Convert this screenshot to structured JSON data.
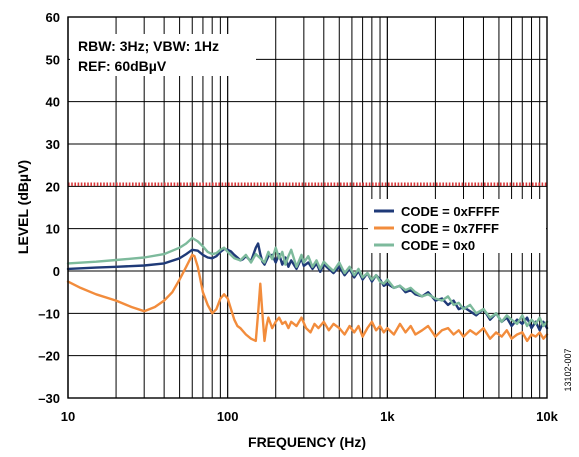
{
  "chart_data": {
    "type": "line",
    "xlabel": "FREQUENCY (Hz)",
    "ylabel": "LEVEL (dBµV)",
    "x_scale": "log",
    "xlim": [
      10,
      10000
    ],
    "ylim": [
      -30,
      60
    ],
    "x_ticks": [
      {
        "value": 10,
        "label": "10"
      },
      {
        "value": 100,
        "label": "100"
      },
      {
        "value": 1000,
        "label": "1k"
      },
      {
        "value": 10000,
        "label": "10k"
      }
    ],
    "y_ticks": [
      {
        "value": 60,
        "label": "60"
      },
      {
        "value": 50,
        "label": "50"
      },
      {
        "value": 40,
        "label": "40"
      },
      {
        "value": 30,
        "label": "30"
      },
      {
        "value": 20,
        "label": "20"
      },
      {
        "value": 10,
        "label": "10"
      },
      {
        "value": 0,
        "label": "0"
      },
      {
        "value": -10,
        "label": "–10"
      },
      {
        "value": -20,
        "label": "–20"
      },
      {
        "value": -30,
        "label": "–30"
      }
    ],
    "grid": true,
    "annotations": [
      "RBW: 3Hz; VBW: 1Hz",
      "REF: 60dBµV"
    ],
    "figure_id": "13102-007",
    "reference_level": {
      "value": 20.5,
      "color": "#d9393b"
    },
    "legend_position": "right",
    "series": [
      {
        "name": "CODE = 0xFFFF",
        "color": "#1f3a78",
        "x": [
          10,
          15,
          20,
          30,
          40,
          50,
          55,
          60,
          65,
          70,
          75,
          80,
          85,
          90,
          95,
          100,
          105,
          110,
          115,
          120,
          125,
          130,
          140,
          150,
          155,
          160,
          165,
          170,
          180,
          190,
          200,
          210,
          220,
          230,
          240,
          250,
          270,
          290,
          300,
          320,
          340,
          360,
          380,
          400,
          430,
          460,
          500,
          540,
          580,
          620,
          660,
          700,
          750,
          800,
          850,
          900,
          950,
          1000,
          1100,
          1200,
          1300,
          1400,
          1500,
          1650,
          1800,
          2000,
          2200,
          2400,
          2600,
          2800,
          3000,
          3300,
          3600,
          4000,
          4400,
          4800,
          5200,
          5600,
          6000,
          6500,
          7000,
          7500,
          8000,
          8500,
          9000,
          9500,
          10000
        ],
        "y": [
          0.5,
          0.8,
          1.0,
          1.3,
          1.8,
          3.0,
          4.0,
          5.0,
          4.8,
          3.8,
          3.2,
          3.0,
          3.5,
          4.5,
          5.2,
          5.0,
          4.6,
          3.8,
          3.2,
          2.5,
          2.8,
          3.5,
          2.3,
          5.5,
          6.5,
          4.0,
          2.2,
          1.5,
          3.5,
          3.8,
          2.0,
          4.0,
          1.5,
          3.2,
          1.0,
          2.5,
          0.5,
          3.0,
          1.2,
          2.0,
          0.5,
          1.8,
          -0.2,
          1.6,
          0.5,
          -0.5,
          1.0,
          -1.0,
          0.5,
          -1.5,
          0.0,
          -2.0,
          -0.5,
          -2.5,
          -1.0,
          -2.0,
          -3.5,
          -3.0,
          -4.0,
          -3.5,
          -5.0,
          -4.5,
          -5.5,
          -6.0,
          -5.0,
          -7.0,
          -6.5,
          -8.0,
          -7.0,
          -9.0,
          -8.5,
          -9.5,
          -10.5,
          -9.0,
          -11.5,
          -10.0,
          -12.0,
          -11.0,
          -13.0,
          -11.5,
          -12.5,
          -11.0,
          -13.5,
          -12.0,
          -14.0,
          -12.0,
          -13.5
        ]
      },
      {
        "name": "CODE = 0x7FFF",
        "color": "#f28c3c",
        "x": [
          10,
          12,
          15,
          20,
          25,
          30,
          35,
          40,
          45,
          50,
          55,
          60,
          62,
          65,
          70,
          75,
          80,
          85,
          90,
          95,
          100,
          105,
          110,
          115,
          120,
          130,
          140,
          150,
          155,
          160,
          165,
          170,
          175,
          180,
          190,
          200,
          210,
          220,
          230,
          240,
          250,
          270,
          290,
          310,
          330,
          350,
          370,
          400,
          430,
          460,
          500,
          540,
          580,
          620,
          660,
          700,
          750,
          800,
          850,
          900,
          950,
          1000,
          1100,
          1200,
          1300,
          1400,
          1500,
          1650,
          1800,
          2000,
          2200,
          2400,
          2600,
          2800,
          3000,
          3300,
          3600,
          4000,
          4400,
          4800,
          5200,
          5600,
          6000,
          6500,
          7000,
          7500,
          8000,
          8500,
          9000,
          9500,
          10000
        ],
        "y": [
          -2.5,
          -4.0,
          -5.5,
          -7.0,
          -8.5,
          -9.5,
          -8.5,
          -7.0,
          -5.0,
          -2.0,
          1.0,
          3.8,
          3.5,
          1.0,
          -5.0,
          -8.0,
          -10.0,
          -9.0,
          -6.5,
          -5.5,
          -6.5,
          -9.0,
          -11.5,
          -13.0,
          -13.5,
          -15.0,
          -16.0,
          -16.5,
          -10.0,
          -3.0,
          -10.0,
          -16.5,
          -13.0,
          -11.0,
          -13.5,
          -12.0,
          -11.0,
          -12.5,
          -12.0,
          -13.5,
          -12.0,
          -13.0,
          -11.0,
          -13.5,
          -14.5,
          -12.5,
          -13.5,
          -12.0,
          -14.0,
          -12.5,
          -13.5,
          -15.0,
          -13.0,
          -14.5,
          -13.0,
          -15.5,
          -13.5,
          -12.0,
          -14.0,
          -13.0,
          -14.5,
          -13.5,
          -15.0,
          -12.5,
          -14.5,
          -13.0,
          -15.0,
          -14.0,
          -13.0,
          -15.5,
          -14.0,
          -13.5,
          -15.0,
          -14.0,
          -15.5,
          -14.0,
          -15.0,
          -13.5,
          -16.0,
          -14.5,
          -15.5,
          -14.0,
          -16.0,
          -15.0,
          -14.5,
          -16.5,
          -15.0,
          -15.5,
          -14.5,
          -16.0,
          -15.0
        ]
      },
      {
        "name": "CODE = 0x0",
        "color": "#7dba9c",
        "x": [
          10,
          15,
          20,
          30,
          40,
          50,
          55,
          60,
          65,
          70,
          75,
          80,
          85,
          90,
          95,
          100,
          110,
          120,
          130,
          140,
          150,
          160,
          170,
          180,
          190,
          200,
          210,
          220,
          230,
          240,
          250,
          270,
          290,
          300,
          320,
          340,
          360,
          380,
          400,
          430,
          460,
          500,
          540,
          580,
          620,
          660,
          700,
          750,
          800,
          850,
          900,
          950,
          1000,
          1100,
          1200,
          1300,
          1400,
          1500,
          1650,
          1800,
          2000,
          2200,
          2400,
          2600,
          2800,
          3000,
          3300,
          3600,
          4000,
          4400,
          4800,
          5200,
          5600,
          6000,
          6500,
          7000,
          7500,
          8000,
          8500,
          9000,
          9500,
          10000
        ],
        "y": [
          1.8,
          2.2,
          2.6,
          3.2,
          4.0,
          5.5,
          6.5,
          7.8,
          7.0,
          5.8,
          4.5,
          4.0,
          4.2,
          5.0,
          5.5,
          4.5,
          3.0,
          2.5,
          3.8,
          2.0,
          4.0,
          3.0,
          2.0,
          4.5,
          2.8,
          5.5,
          3.0,
          4.5,
          1.5,
          3.5,
          5.0,
          1.0,
          3.8,
          2.0,
          3.5,
          1.0,
          2.5,
          0.5,
          2.2,
          1.0,
          0.0,
          2.0,
          -0.5,
          1.0,
          -1.0,
          0.5,
          -1.5,
          -0.5,
          -2.0,
          -1.0,
          -2.5,
          -3.0,
          -2.0,
          -4.0,
          -3.5,
          -4.5,
          -4.0,
          -5.0,
          -6.0,
          -5.5,
          -6.5,
          -7.0,
          -6.0,
          -8.0,
          -7.5,
          -9.0,
          -8.0,
          -10.0,
          -9.0,
          -11.0,
          -10.0,
          -12.0,
          -10.5,
          -11.5,
          -12.5,
          -10.5,
          -13.0,
          -11.5,
          -12.5,
          -11.0,
          -13.0,
          -12.0
        ]
      }
    ]
  }
}
